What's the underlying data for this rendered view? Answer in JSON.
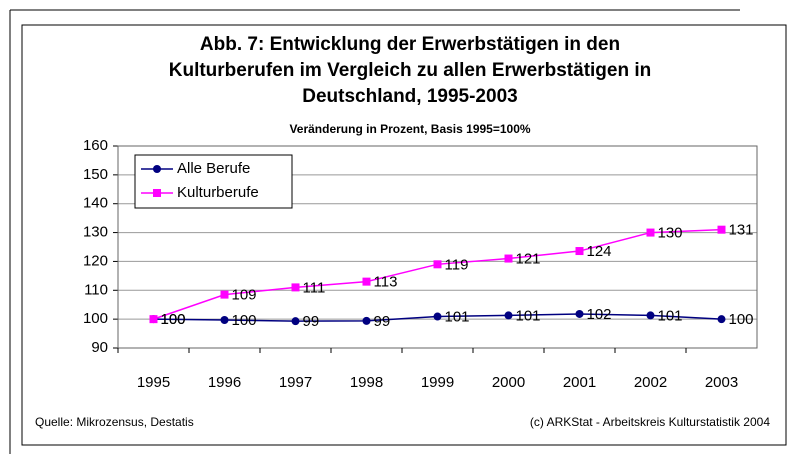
{
  "chart_data": {
    "type": "line",
    "title": [
      "Abb. 7: Entwicklung der Erwerbstätigen in den",
      "Kulturberufen im Vergleich zu allen Erwerbstätigen  in",
      "Deutschland, 1995-2003"
    ],
    "subtitle": "Veränderung in Prozent, Basis 1995=100%",
    "categories": [
      "1995",
      "1996",
      "1997",
      "1998",
      "1999",
      "2000",
      "2001",
      "2002",
      "2003"
    ],
    "series": [
      {
        "name": "Alle Berufe",
        "color": "#000080",
        "marker": "circle",
        "values": [
          100,
          99.7,
          99.3,
          99.4,
          100.9,
          101.3,
          101.8,
          101.3,
          100
        ],
        "value_labels": [
          "100",
          "100",
          "99",
          "99",
          "101",
          "101",
          "102",
          "101",
          "100"
        ]
      },
      {
        "name": "Kulturberufe",
        "color": "#ff00ff",
        "marker": "square",
        "values": [
          100,
          108.5,
          111,
          113,
          119,
          121,
          123.6,
          130,
          131
        ],
        "value_labels": [
          "100",
          "109",
          "111",
          "113",
          "119",
          "121",
          "124",
          "130",
          "131"
        ]
      }
    ],
    "ylim": [
      90,
      160
    ],
    "yticks": [
      90,
      100,
      110,
      120,
      130,
      140,
      150,
      160
    ],
    "grid": true,
    "legend": "upper left",
    "source": "Quelle: Mikrozensus, Destatis",
    "copyright": "(c) ARKStat - Arbeitskreis Kulturstatistik 2004"
  }
}
